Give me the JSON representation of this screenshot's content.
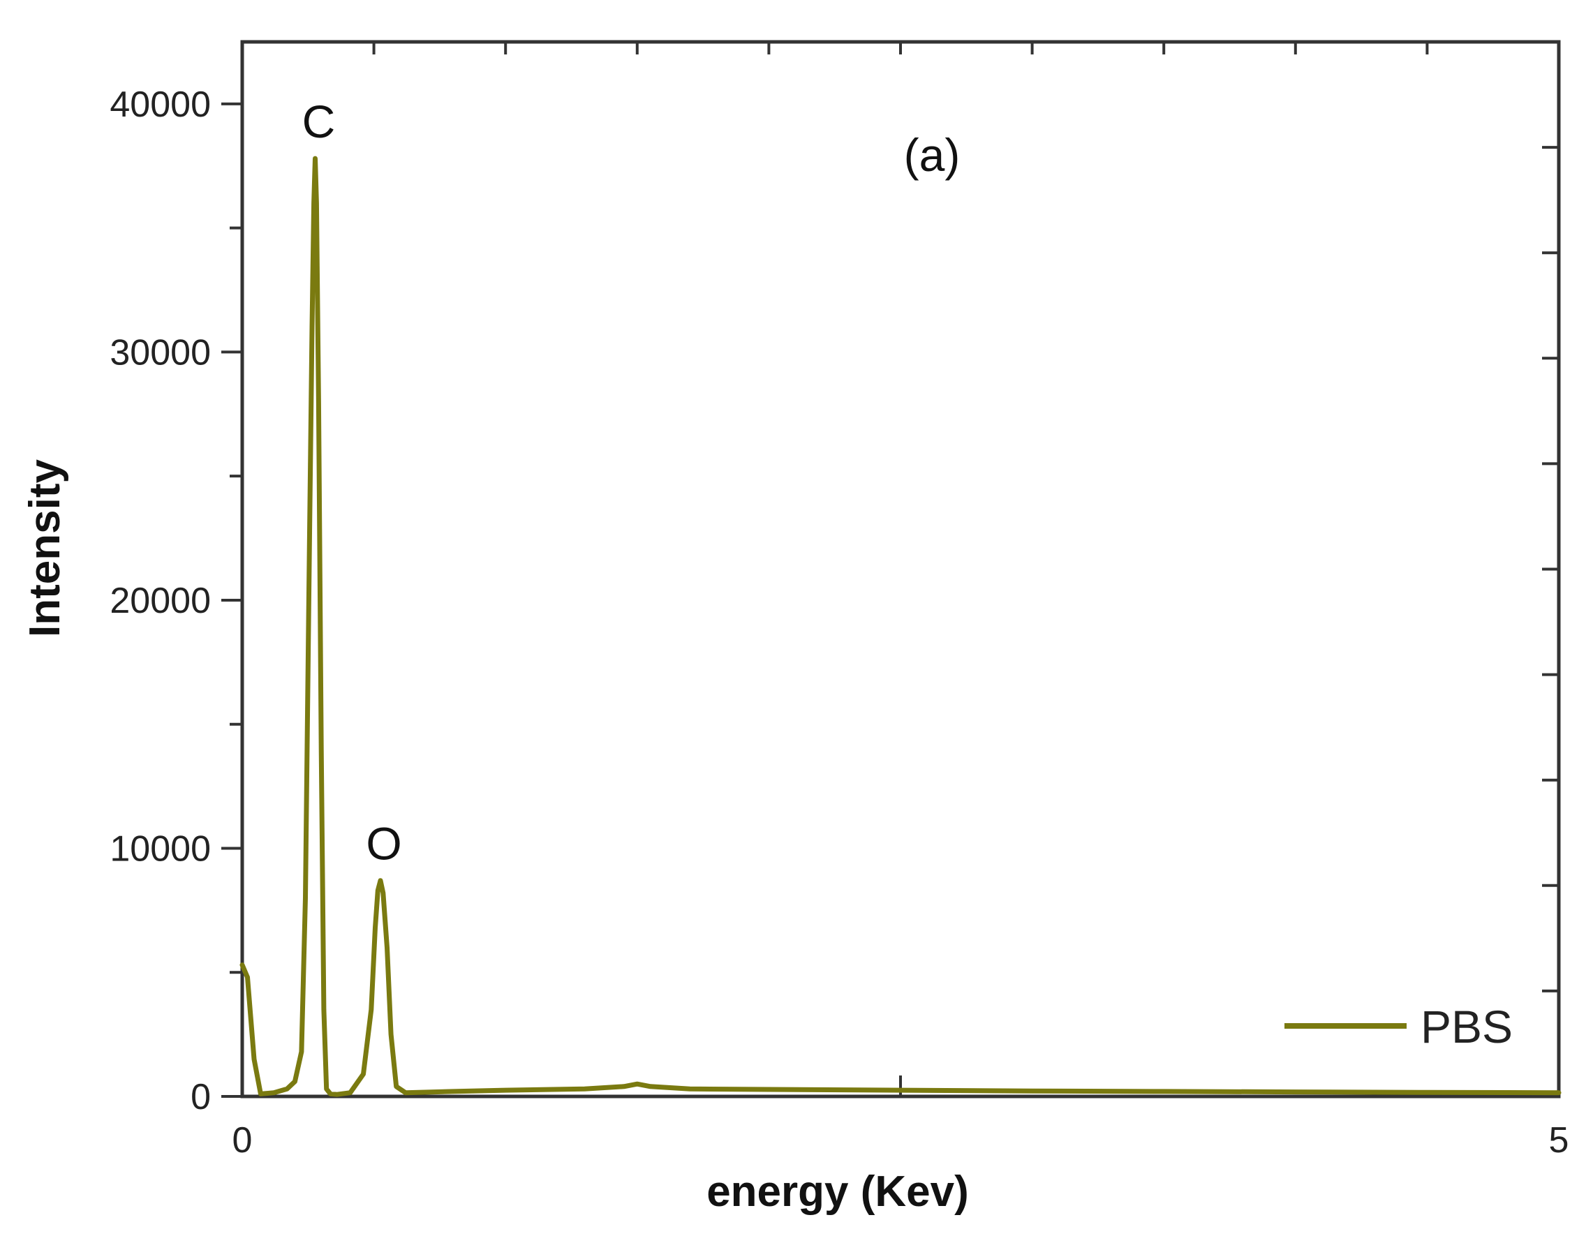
{
  "chart_data": {
    "type": "line",
    "title": "",
    "xlabel": "energy (Kev)",
    "ylabel": "Intensity",
    "xlim": [
      0,
      5
    ],
    "ylim": [
      0,
      42500
    ],
    "x_ticks": [
      0,
      5
    ],
    "y_ticks": [
      0,
      10000,
      20000,
      30000,
      40000
    ],
    "grid": false,
    "legend_position": "bottom-right",
    "panel_label": "(a)",
    "peak_labels": [
      {
        "text": "C",
        "x": 0.277,
        "y": 37800
      },
      {
        "text": "O",
        "x": 0.525,
        "y": 8700
      }
    ],
    "series": [
      {
        "name": "PBS",
        "color": "#7a7a10",
        "x": [
          0,
          0.02,
          0.045,
          0.07,
          0.12,
          0.17,
          0.2,
          0.225,
          0.24,
          0.255,
          0.265,
          0.272,
          0.277,
          0.282,
          0.29,
          0.3,
          0.31,
          0.32,
          0.335,
          0.36,
          0.41,
          0.46,
          0.49,
          0.505,
          0.515,
          0.525,
          0.535,
          0.55,
          0.565,
          0.585,
          0.62,
          0.8,
          1.0,
          1.3,
          1.45,
          1.5,
          1.55,
          1.7,
          2.0,
          2.5,
          3.0,
          3.5,
          4.0,
          4.5,
          5.0
        ],
        "y": [
          5300,
          4800,
          1500,
          100,
          150,
          300,
          600,
          1800,
          8000,
          22000,
          31000,
          36000,
          37800,
          36000,
          28000,
          14000,
          3500,
          300,
          100,
          80,
          150,
          900,
          3500,
          6800,
          8300,
          8700,
          8200,
          6000,
          2500,
          400,
          150,
          200,
          250,
          300,
          400,
          500,
          400,
          300,
          280,
          250,
          220,
          200,
          180,
          160,
          150
        ]
      }
    ]
  }
}
